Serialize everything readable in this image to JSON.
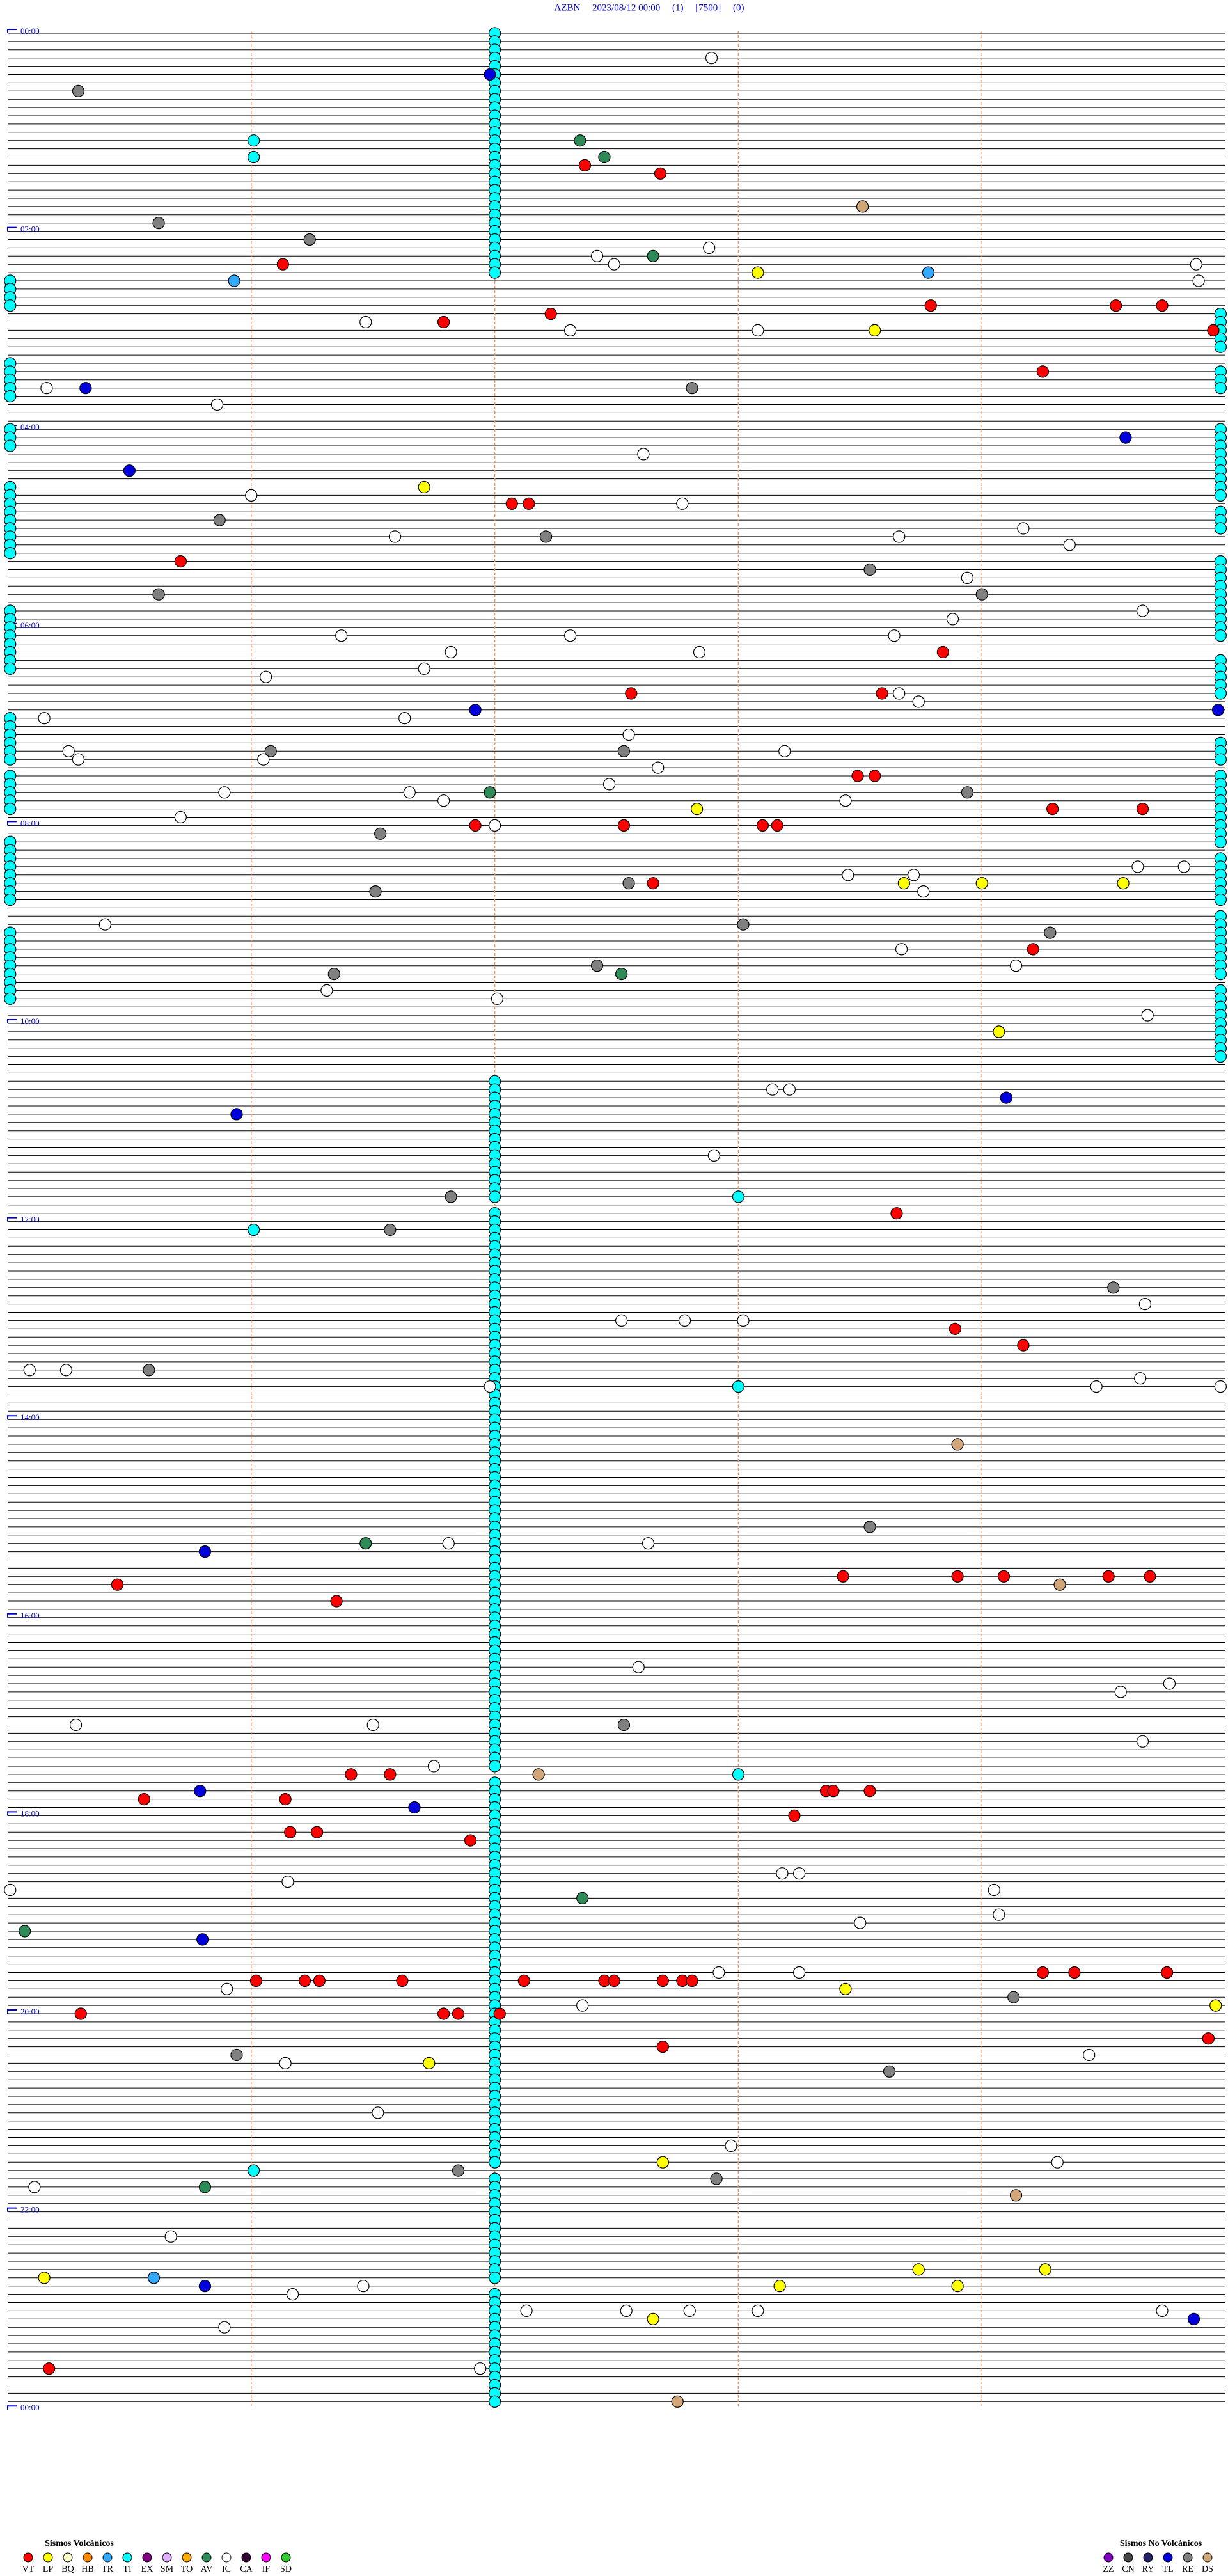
{
  "chart_data": {
    "type": "helicorder",
    "title": "AZBN     2023/08/12 00:00     (1)     [7500]     (0)",
    "hour_labels": [
      "00:00",
      "02:00",
      "04:00",
      "06:00",
      "08:00",
      "10:00",
      "12:00",
      "14:00",
      "16:00",
      "18:00",
      "20:00",
      "22:00",
      "00:00"
    ],
    "events": [
      [
        3,
        2.89,
        "IC"
      ],
      [
        5,
        1.98,
        "TL"
      ],
      [
        7,
        0.29,
        "RE"
      ],
      [
        13,
        1.01,
        "TI"
      ],
      [
        13,
        2.35,
        "AV"
      ],
      [
        15,
        1.01,
        "TI"
      ],
      [
        15,
        2.45,
        "AV"
      ],
      [
        16,
        2.37,
        "VT"
      ],
      [
        17,
        2.68,
        "VT"
      ],
      [
        21,
        3.51,
        "DS"
      ],
      [
        23,
        0.62,
        "RE"
      ],
      [
        25,
        1.24,
        "RE"
      ],
      [
        26,
        2.88,
        "IC"
      ],
      [
        27,
        2.42,
        "IC"
      ],
      [
        27,
        2.65,
        "AV"
      ],
      [
        28,
        1.13,
        "VT"
      ],
      [
        28,
        2.49,
        "IC"
      ],
      [
        29,
        3.08,
        "LP"
      ],
      [
        29,
        3.78,
        "TR"
      ],
      [
        28,
        4.88,
        "IC"
      ],
      [
        30,
        0.93,
        "TR"
      ],
      [
        30,
        4.89,
        "IC"
      ],
      [
        33,
        3.79,
        "VT"
      ],
      [
        33,
        4.55,
        "VT"
      ],
      [
        33,
        4.74,
        "VT"
      ],
      [
        34,
        2.23,
        "VT"
      ],
      [
        35,
        1.47,
        "IC"
      ],
      [
        35,
        1.79,
        "VT"
      ],
      [
        36,
        2.31,
        "IC"
      ],
      [
        36,
        3.08,
        "IC"
      ],
      [
        36,
        3.56,
        "LP"
      ],
      [
        36,
        4.95,
        "VT"
      ],
      [
        41,
        4.25,
        "VT"
      ],
      [
        43,
        0.16,
        "IC"
      ],
      [
        43,
        0.32,
        "TL"
      ],
      [
        43,
        2.81,
        "RE"
      ],
      [
        45,
        0.86,
        "IC"
      ],
      [
        49,
        4.59,
        "TL"
      ],
      [
        51,
        2.61,
        "IC"
      ],
      [
        53,
        0.5,
        "TL"
      ],
      [
        55,
        1.71,
        "LP"
      ],
      [
        56,
        1.0,
        "IC"
      ],
      [
        57,
        2.07,
        "VT"
      ],
      [
        57,
        2.14,
        "VT"
      ],
      [
        57,
        2.77,
        "IC"
      ],
      [
        59,
        0.87,
        "RE"
      ],
      [
        61,
        1.59,
        "IC"
      ],
      [
        61,
        2.21,
        "RE"
      ],
      [
        61,
        3.66,
        "IC"
      ],
      [
        60,
        4.17,
        "IC"
      ],
      [
        62,
        4.36,
        "IC"
      ],
      [
        64,
        0.71,
        "VT"
      ],
      [
        65,
        3.54,
        "RE"
      ],
      [
        66,
        3.94,
        "IC"
      ],
      [
        68,
        0.62,
        "RE"
      ],
      [
        68,
        4.0,
        "RE"
      ],
      [
        70,
        4.66,
        "IC"
      ],
      [
        71,
        3.88,
        "IC"
      ],
      [
        73,
        1.37,
        "IC"
      ],
      [
        73,
        2.31,
        "IC"
      ],
      [
        73,
        3.64,
        "IC"
      ],
      [
        75,
        1.82,
        "IC"
      ],
      [
        75,
        2.84,
        "IC"
      ],
      [
        75,
        3.84,
        "VT"
      ],
      [
        77,
        1.71,
        "IC"
      ],
      [
        78,
        1.06,
        "IC"
      ],
      [
        80,
        2.56,
        "VT"
      ],
      [
        80,
        3.59,
        "VT"
      ],
      [
        80,
        3.66,
        "IC"
      ],
      [
        81,
        3.74,
        "IC"
      ],
      [
        82,
        1.92,
        "TL"
      ],
      [
        82,
        4.97,
        "TL"
      ],
      [
        83,
        0.15,
        "IC"
      ],
      [
        83,
        1.63,
        "IC"
      ],
      [
        85,
        2.55,
        "IC"
      ],
      [
        87,
        0.25,
        "IC"
      ],
      [
        87,
        1.08,
        "RE"
      ],
      [
        87,
        2.53,
        "RE"
      ],
      [
        87,
        3.19,
        "IC"
      ],
      [
        88,
        0.29,
        "IC"
      ],
      [
        88,
        1.05,
        "IC"
      ],
      [
        89,
        2.67,
        "IC"
      ],
      [
        90,
        3.49,
        "VT"
      ],
      [
        90,
        3.56,
        "VT"
      ],
      [
        91,
        2.47,
        "IC"
      ],
      [
        92,
        0.89,
        "IC"
      ],
      [
        92,
        1.65,
        "IC"
      ],
      [
        92,
        1.98,
        "AV"
      ],
      [
        92,
        3.94,
        "RE"
      ],
      [
        93,
        1.79,
        "IC"
      ],
      [
        93,
        3.44,
        "IC"
      ],
      [
        94,
        2.83,
        "LP"
      ],
      [
        94,
        4.29,
        "VT"
      ],
      [
        94,
        4.66,
        "VT"
      ],
      [
        95,
        0.71,
        "IC"
      ],
      [
        96,
        1.92,
        "VT"
      ],
      [
        96,
        2.0,
        "IC"
      ],
      [
        96,
        2.53,
        "VT"
      ],
      [
        96,
        3.1,
        "VT"
      ],
      [
        96,
        3.16,
        "VT"
      ],
      [
        97,
        1.53,
        "RE"
      ],
      [
        101,
        4.64,
        "IC"
      ],
      [
        101,
        4.83,
        "IC"
      ],
      [
        102,
        3.45,
        "IC"
      ],
      [
        102,
        3.72,
        "IC"
      ],
      [
        103,
        2.55,
        "RE"
      ],
      [
        103,
        2.65,
        "VT"
      ],
      [
        103,
        3.68,
        "LP"
      ],
      [
        103,
        4.0,
        "LP"
      ],
      [
        103,
        4.58,
        "LP"
      ],
      [
        104,
        3.76,
        "IC"
      ],
      [
        104,
        1.51,
        "RE"
      ],
      [
        108,
        0.4,
        "IC"
      ],
      [
        108,
        3.02,
        "RE"
      ],
      [
        109,
        4.28,
        "RE"
      ],
      [
        111,
        3.67,
        "IC"
      ],
      [
        111,
        4.21,
        "VT"
      ],
      [
        113,
        2.42,
        "RE"
      ],
      [
        113,
        4.14,
        "IC"
      ],
      [
        114,
        1.34,
        "RE"
      ],
      [
        114,
        2.52,
        "AV"
      ],
      [
        116,
        1.31,
        "IC"
      ],
      [
        117,
        2.01,
        "IC"
      ],
      [
        119,
        4.68,
        "IC"
      ],
      [
        121,
        4.07,
        "LP"
      ],
      [
        128,
        3.14,
        "IC"
      ],
      [
        128,
        3.21,
        "IC"
      ],
      [
        129,
        4.1,
        "TL"
      ],
      [
        131,
        0.94,
        "TL"
      ],
      [
        136,
        2.9,
        "IC"
      ],
      [
        141,
        1.82,
        "RE"
      ],
      [
        141,
        3.0,
        "TI"
      ],
      [
        143,
        3.65,
        "VT"
      ],
      [
        145,
        1.57,
        "RE"
      ],
      [
        145,
        1.01,
        "TI"
      ],
      [
        152,
        4.54,
        "RE"
      ],
      [
        154,
        4.67,
        "IC"
      ],
      [
        156,
        2.52,
        "IC"
      ],
      [
        156,
        2.78,
        "IC"
      ],
      [
        156,
        3.02,
        "IC"
      ],
      [
        157,
        3.89,
        "VT"
      ],
      [
        159,
        4.17,
        "VT"
      ],
      [
        162,
        0.09,
        "IC"
      ],
      [
        162,
        0.24,
        "IC"
      ],
      [
        162,
        0.58,
        "RE"
      ],
      [
        163,
        4.65,
        "IC"
      ],
      [
        164,
        1.98,
        "IC"
      ],
      [
        164,
        3.0,
        "TI"
      ],
      [
        164,
        4.47,
        "IC"
      ],
      [
        164,
        4.98,
        "IC"
      ],
      [
        171,
        3.9,
        "DS"
      ],
      [
        181,
        3.54,
        "RE"
      ],
      [
        184,
        0.81,
        "TL"
      ],
      [
        183,
        1.47,
        "AV"
      ],
      [
        183,
        1.81,
        "IC"
      ],
      [
        183,
        2.63,
        "IC"
      ],
      [
        187,
        3.43,
        "VT"
      ],
      [
        187,
        3.9,
        "VT"
      ],
      [
        187,
        4.09,
        "VT"
      ],
      [
        187,
        4.52,
        "VT"
      ],
      [
        187,
        4.69,
        "VT"
      ],
      [
        188,
        4.32,
        "DS"
      ],
      [
        188,
        0.45,
        "VT"
      ],
      [
        190,
        1.35,
        "VT"
      ],
      [
        198,
        2.59,
        "IC"
      ],
      [
        200,
        4.77,
        "IC"
      ],
      [
        201,
        4.57,
        "IC"
      ],
      [
        205,
        0.28,
        "IC"
      ],
      [
        205,
        1.5,
        "IC"
      ],
      [
        205,
        2.53,
        "RE"
      ],
      [
        207,
        4.66,
        "IC"
      ],
      [
        210,
        1.75,
        "IC"
      ],
      [
        211,
        1.41,
        "VT"
      ],
      [
        211,
        1.57,
        "VT"
      ],
      [
        211,
        2.18,
        "DS"
      ],
      [
        211,
        3.0,
        "TI"
      ],
      [
        213,
        0.79,
        "TL"
      ],
      [
        213,
        3.36,
        "VT"
      ],
      [
        213,
        3.39,
        "VT"
      ],
      [
        213,
        3.54,
        "VT"
      ],
      [
        214,
        0.56,
        "VT"
      ],
      [
        214,
        1.14,
        "VT"
      ],
      [
        215,
        1.67,
        "TL"
      ],
      [
        216,
        3.23,
        "VT"
      ],
      [
        218,
        1.16,
        "VT"
      ],
      [
        218,
        1.27,
        "VT"
      ],
      [
        219,
        1.9,
        "VT"
      ],
      [
        224,
        1.15,
        "IC"
      ],
      [
        223,
        3.18,
        "IC"
      ],
      [
        223,
        3.25,
        "IC"
      ],
      [
        225,
        4.05,
        "IC"
      ],
      [
        225,
        0.01,
        "IC"
      ],
      [
        226,
        2.36,
        "AV"
      ],
      [
        228,
        4.07,
        "IC"
      ],
      [
        229,
        3.5,
        "IC"
      ],
      [
        230,
        0.07,
        "AV"
      ],
      [
        231,
        0.8,
        "TL"
      ],
      [
        235,
        2.92,
        "IC"
      ],
      [
        235,
        3.25,
        "IC"
      ],
      [
        235,
        4.25,
        "VT"
      ],
      [
        235,
        4.38,
        "VT"
      ],
      [
        235,
        4.76,
        "VT"
      ],
      [
        236,
        1.02,
        "VT"
      ],
      [
        236,
        1.22,
        "VT"
      ],
      [
        236,
        1.28,
        "VT"
      ],
      [
        236,
        1.62,
        "VT"
      ],
      [
        236,
        2.12,
        "VT"
      ],
      [
        236,
        2.45,
        "VT"
      ],
      [
        236,
        2.49,
        "VT"
      ],
      [
        236,
        2.69,
        "VT"
      ],
      [
        236,
        2.77,
        "VT"
      ],
      [
        236,
        2.81,
        "VT"
      ],
      [
        237,
        0.9,
        "IC"
      ],
      [
        237,
        3.44,
        "LP"
      ],
      [
        238,
        4.13,
        "RE"
      ],
      [
        239,
        2.36,
        "IC"
      ],
      [
        239,
        4.96,
        "LP"
      ],
      [
        240,
        0.3,
        "VT"
      ],
      [
        240,
        1.79,
        "VT"
      ],
      [
        240,
        1.85,
        "VT"
      ],
      [
        240,
        2.02,
        "VT"
      ],
      [
        243,
        4.93,
        "VT"
      ],
      [
        244,
        2.69,
        "VT"
      ],
      [
        245,
        0.94,
        "RE"
      ],
      [
        245,
        4.44,
        "IC"
      ],
      [
        246,
        1.14,
        "IC"
      ],
      [
        246,
        1.73,
        "LP"
      ],
      [
        247,
        3.62,
        "RE"
      ],
      [
        252,
        1.52,
        "IC"
      ],
      [
        256,
        2.97,
        "IC"
      ],
      [
        258,
        2.69,
        "LP"
      ],
      [
        258,
        4.31,
        "IC"
      ],
      [
        259,
        1.85,
        "RE"
      ],
      [
        259,
        1.01,
        "TI"
      ],
      [
        260,
        2.91,
        "RE"
      ],
      [
        261,
        0.11,
        "IC"
      ],
      [
        261,
        0.81,
        "AV"
      ],
      [
        262,
        4.14,
        "DS"
      ],
      [
        267,
        0.67,
        "IC"
      ],
      [
        271,
        3.74,
        "LP"
      ],
      [
        271,
        4.26,
        "LP"
      ],
      [
        272,
        0.15,
        "LP"
      ],
      [
        272,
        0.6,
        "TR"
      ],
      [
        273,
        0.81,
        "TL"
      ],
      [
        273,
        1.46,
        "IC"
      ],
      [
        273,
        3.17,
        "LP"
      ],
      [
        273,
        3.9,
        "LP"
      ],
      [
        274,
        1.17,
        "IC"
      ],
      [
        276,
        2.13,
        "IC"
      ],
      [
        276,
        2.54,
        "IC"
      ],
      [
        276,
        2.8,
        "IC"
      ],
      [
        276,
        3.08,
        "IC"
      ],
      [
        276,
        4.74,
        "IC"
      ],
      [
        277,
        2.65,
        "LP"
      ],
      [
        277,
        4.87,
        "TL"
      ],
      [
        278,
        0.89,
        "IC"
      ],
      [
        283,
        0.17,
        "VT"
      ],
      [
        283,
        1.94,
        "IC"
      ],
      [
        287,
        2.75,
        "DS"
      ]
    ],
    "ti_runs": [
      {
        "minute": 2.0,
        "rows": [
          0,
          29
        ]
      },
      {
        "minute": 2.0,
        "rows": [
          127,
          141
        ]
      },
      {
        "minute": 2.0,
        "rows": [
          143,
          210
        ]
      },
      {
        "minute": 2.0,
        "rows": [
          212,
          258
        ]
      },
      {
        "minute": 2.0,
        "rows": [
          260,
          272
        ]
      },
      {
        "minute": 2.0,
        "rows": [
          274,
          287
        ]
      },
      {
        "minute": 4.98,
        "rows": [
          34,
          38
        ]
      },
      {
        "minute": 4.98,
        "rows": [
          41,
          43
        ]
      },
      {
        "minute": 4.98,
        "rows": [
          48,
          56
        ]
      },
      {
        "minute": 4.98,
        "rows": [
          58,
          60
        ]
      },
      {
        "minute": 4.98,
        "rows": [
          64,
          73
        ]
      },
      {
        "minute": 4.98,
        "rows": [
          76,
          80
        ]
      },
      {
        "minute": 4.98,
        "rows": [
          86,
          88
        ]
      },
      {
        "minute": 4.98,
        "rows": [
          90,
          98
        ]
      },
      {
        "minute": 4.98,
        "rows": [
          100,
          105
        ]
      },
      {
        "minute": 4.98,
        "rows": [
          107,
          114
        ]
      },
      {
        "minute": 4.98,
        "rows": [
          116,
          124
        ]
      },
      {
        "minute": 0.01,
        "rows": [
          30,
          33
        ]
      },
      {
        "minute": 0.01,
        "rows": [
          40,
          44
        ]
      },
      {
        "minute": 0.01,
        "rows": [
          48,
          50
        ]
      },
      {
        "minute": 0.01,
        "rows": [
          55,
          63
        ]
      },
      {
        "minute": 0.01,
        "rows": [
          70,
          77
        ]
      },
      {
        "minute": 0.01,
        "rows": [
          83,
          88
        ]
      },
      {
        "minute": 0.01,
        "rows": [
          90,
          94
        ]
      },
      {
        "minute": 0.01,
        "rows": [
          98,
          105
        ]
      },
      {
        "minute": 0.01,
        "rows": [
          109,
          117
        ]
      }
    ],
    "legend_volcanic": {
      "title": "Sismos Volcánicos",
      "items": [
        {
          "code": "VT",
          "color": "#ff0000"
        },
        {
          "code": "LP",
          "color": "#ffff00"
        },
        {
          "code": "BQ",
          "color": "#ffffcc"
        },
        {
          "code": "HB",
          "color": "#ff8800"
        },
        {
          "code": "TR",
          "color": "#33aaff"
        },
        {
          "code": "TI",
          "color": "#00ffff"
        },
        {
          "code": "EX",
          "color": "#800080"
        },
        {
          "code": "SM",
          "color": "#e0b0ff"
        },
        {
          "code": "TO",
          "color": "#ffaa00"
        },
        {
          "code": "AV",
          "color": "#2e8b57"
        },
        {
          "code": "IC",
          "color": "#ffffff"
        },
        {
          "code": "CA",
          "color": "#330033"
        },
        {
          "code": "IF",
          "color": "#ff00ff"
        },
        {
          "code": "SD",
          "color": "#33cc33"
        }
      ]
    },
    "legend_non_volcanic": {
      "title": "Sismos No Volcánicos",
      "items": [
        {
          "code": "ZZ",
          "color": "#8000c0"
        },
        {
          "code": "CN",
          "color": "#444444"
        },
        {
          "code": "RY",
          "color": "#222266"
        },
        {
          "code": "TL",
          "color": "#0000dd"
        },
        {
          "code": "RE",
          "color": "#808080"
        },
        {
          "code": "DS",
          "color": "#d2a679"
        }
      ]
    }
  }
}
